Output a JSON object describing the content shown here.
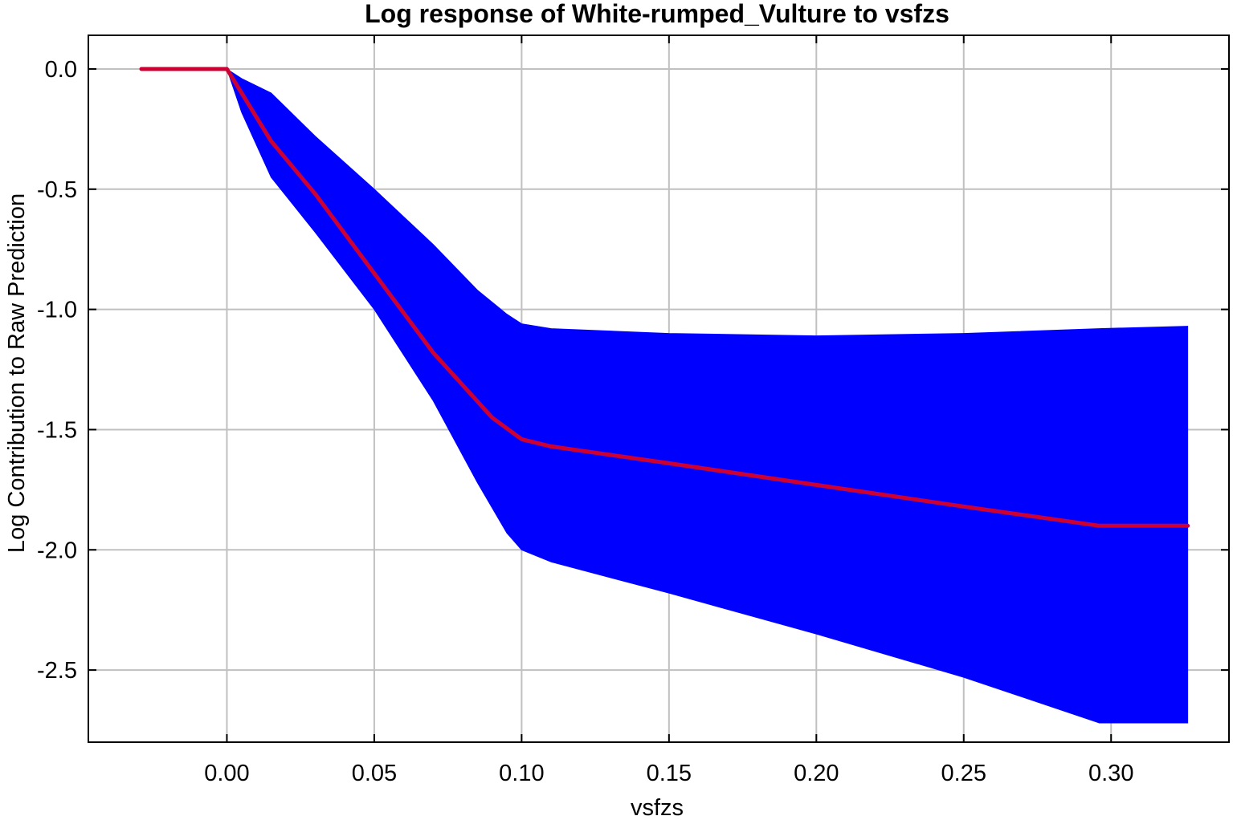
{
  "chart_data": {
    "type": "area",
    "title": "Log response of White-rumped_Vulture to vsfzs",
    "xlabel": "vsfzs",
    "ylabel": "Log Contribution to Raw Prediction",
    "xlim": [
      -0.047,
      0.34
    ],
    "ylim": [
      -2.8,
      0.14
    ],
    "x_ticks": [
      "0.00",
      "0.05",
      "0.10",
      "0.15",
      "0.20",
      "0.25",
      "0.30"
    ],
    "y_ticks": [
      "0.0",
      "-0.5",
      "-1.0",
      "-1.5",
      "-2.0",
      "-2.5"
    ],
    "grid": true,
    "colors": {
      "band": "#0000ff",
      "line": "#cc0033",
      "grid": "#c0c0c0",
      "axes": "#000000"
    },
    "series": [
      {
        "role": "mean",
        "x": [
          -0.029,
          0.0,
          0.005,
          0.015,
          0.03,
          0.05,
          0.07,
          0.09,
          0.1,
          0.11,
          0.15,
          0.2,
          0.25,
          0.296,
          0.326
        ],
        "y": [
          0.0,
          0.0,
          -0.1,
          -0.3,
          -0.52,
          -0.85,
          -1.18,
          -1.45,
          -1.54,
          -1.57,
          -1.64,
          -1.73,
          -1.82,
          -1.9,
          -1.9
        ]
      },
      {
        "role": "upper",
        "x": [
          0.0,
          0.005,
          0.015,
          0.03,
          0.05,
          0.07,
          0.085,
          0.095,
          0.1,
          0.11,
          0.15,
          0.2,
          0.25,
          0.296,
          0.326
        ],
        "y": [
          0.0,
          -0.04,
          -0.1,
          -0.28,
          -0.5,
          -0.73,
          -0.92,
          -1.02,
          -1.06,
          -1.08,
          -1.1,
          -1.11,
          -1.1,
          -1.08,
          -1.07
        ]
      },
      {
        "role": "lower",
        "x": [
          0.0,
          0.005,
          0.015,
          0.03,
          0.05,
          0.07,
          0.085,
          0.095,
          0.1,
          0.11,
          0.15,
          0.2,
          0.25,
          0.296,
          0.326
        ],
        "y": [
          0.0,
          -0.18,
          -0.45,
          -0.68,
          -1.0,
          -1.38,
          -1.72,
          -1.93,
          -2.0,
          -2.05,
          -2.18,
          -2.35,
          -2.53,
          -2.72,
          -2.72
        ]
      }
    ]
  }
}
